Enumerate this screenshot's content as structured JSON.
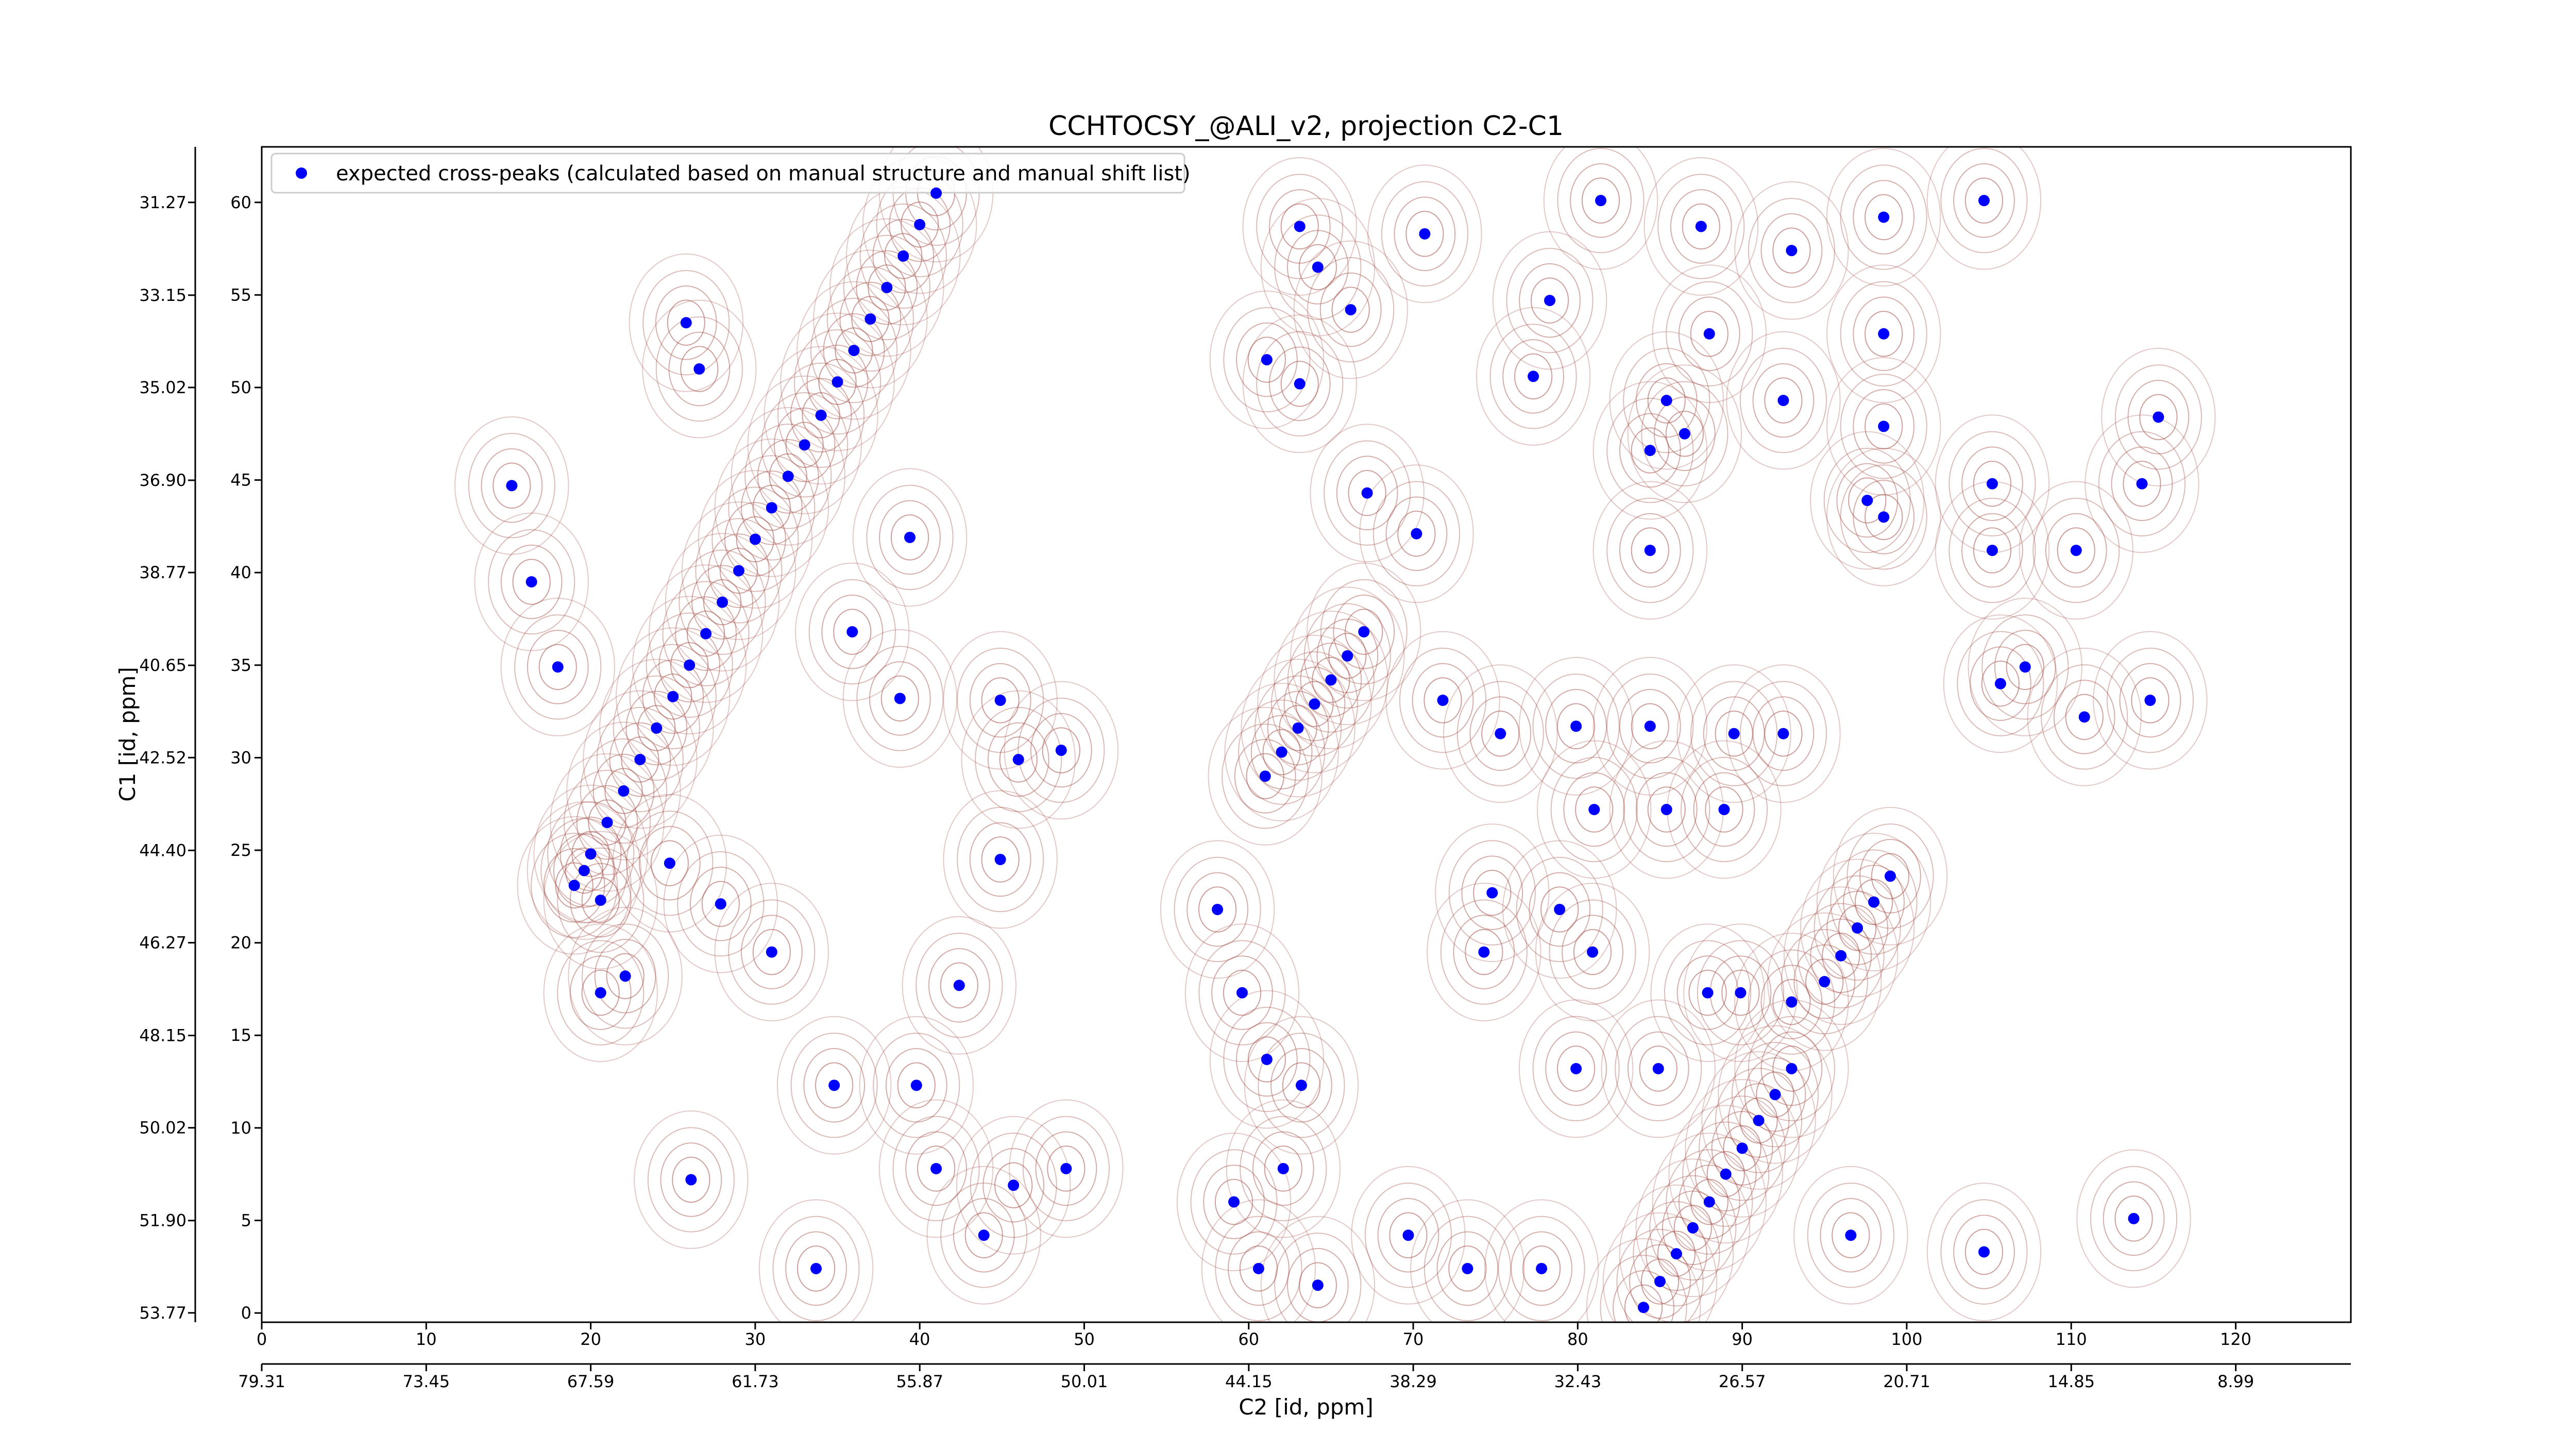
{
  "chart_data": {
    "type": "scatter",
    "title": "CCHTOCSY_@ALI_v2, projection C2-C1",
    "x_label": "C2 [id, ppm]",
    "y_label": "C1 [id, ppm]",
    "xlim": [
      0,
      127
    ],
    "xticks": [
      0,
      10,
      20,
      30,
      40,
      50,
      60,
      70,
      80,
      90,
      100,
      110,
      120
    ],
    "x2lim": [
      79.31,
      4.89
    ],
    "x2ticks": [
      79.31,
      73.45,
      67.59,
      61.73,
      55.87,
      50.01,
      44.15,
      38.29,
      32.43,
      26.57,
      20.71,
      14.85,
      8.99
    ],
    "ylim": [
      -0.5,
      63
    ],
    "yticks": [
      0,
      5,
      10,
      15,
      20,
      25,
      30,
      35,
      40,
      45,
      50,
      55,
      60
    ],
    "y2lim": [
      53.96,
      30.145
    ],
    "y2ticks": [
      53.77,
      {
        "value": 51.9,
        "label": "51.90"
      },
      50.02,
      48.15,
      46.27,
      {
        "value": 44.4,
        "label": "44.40"
      },
      42.52,
      40.65,
      38.77,
      {
        "value": 36.9,
        "label": "36.90"
      },
      35.02,
      33.15,
      31.27
    ],
    "legend": "upper left",
    "series": [
      {
        "name": "expected cross-peaks (calculated based on manual structure and manual shift list)",
        "color": "#0000ff",
        "x": [
          19,
          20,
          21,
          22,
          23,
          24,
          25,
          26,
          27,
          28,
          29,
          30,
          31,
          32,
          33,
          34,
          35,
          36,
          37,
          38,
          39,
          40,
          41,
          61,
          62,
          63,
          64,
          65,
          66,
          67,
          84,
          85,
          86,
          87,
          88,
          89,
          90,
          91,
          92,
          93,
          95,
          96,
          97,
          98,
          99,
          15.2,
          16.4,
          18.0,
          19.6,
          24.8,
          27.9,
          31.0,
          25.8,
          26.6,
          39.4,
          35.9,
          38.8,
          44.9,
          46.0,
          48.6,
          44.9,
          42.4,
          43.9,
          45.7,
          48.9,
          41.0,
          34.8,
          33.7,
          39.8,
          26.1,
          20.6,
          58.1,
          59.6,
          61.1,
          63.2,
          60.6,
          64.2,
          59.1,
          62.1,
          61.1,
          63.1,
          66.2,
          63.1,
          64.2,
          70.7,
          70.2,
          67.2,
          71.8,
          75.3,
          79.9,
          84.4,
          92.5,
          89.5,
          81.0,
          85.4,
          88.9,
          74.8,
          74.3,
          78.9,
          80.9,
          79.9,
          84.9,
          77.8,
          73.3,
          69.7,
          87.9,
          89.9,
          93.0,
          96.6,
          104.7,
          113.8,
          105.2,
          105.2,
          110.3,
          114.3,
          115.3,
          105.7,
          107.2,
          110.8,
          114.8,
          98.6,
          98.6,
          98.6,
          93.0,
          92.5,
          87.5,
          88.0,
          84.4,
          84.4,
          81.4,
          78.3,
          77.3,
          85.4,
          86.5,
          98.6,
          97.6,
          104.7,
          20.6,
          22.1
        ],
        "values": [
          23.1,
          24.8,
          26.5,
          28.2,
          29.9,
          31.6,
          33.3,
          35.0,
          36.7,
          38.4,
          40.1,
          41.8,
          43.5,
          45.2,
          46.9,
          48.5,
          50.3,
          52.0,
          53.7,
          55.4,
          57.1,
          58.8,
          60.5,
          29.0,
          30.3,
          31.6,
          32.9,
          34.2,
          35.5,
          36.8,
          0.3,
          1.7,
          3.2,
          4.6,
          6.0,
          7.5,
          8.9,
          10.4,
          11.8,
          13.2,
          17.9,
          19.3,
          20.8,
          22.2,
          23.6,
          44.7,
          39.5,
          34.9,
          23.9,
          24.3,
          22.1,
          19.5,
          53.5,
          51.0,
          41.9,
          36.8,
          33.2,
          33.1,
          29.9,
          30.4,
          24.5,
          17.7,
          4.2,
          6.9,
          7.8,
          7.8,
          12.3,
          2.4,
          12.3,
          7.2,
          22.3,
          21.8,
          17.3,
          13.7,
          12.3,
          2.4,
          1.5,
          6.0,
          7.8,
          51.5,
          50.2,
          54.2,
          58.7,
          56.5,
          58.3,
          42.1,
          44.3,
          33.1,
          31.3,
          31.7,
          31.7,
          31.3,
          31.3,
          27.2,
          27.2,
          27.2,
          22.7,
          19.5,
          21.8,
          19.5,
          13.2,
          13.2,
          2.4,
          2.4,
          4.2,
          17.3,
          17.3,
          16.8,
          4.2,
          3.3,
          5.1,
          44.8,
          41.2,
          41.2,
          44.8,
          48.4,
          34.0,
          34.9,
          32.2,
          33.1,
          59.2,
          52.9,
          47.9,
          57.4,
          49.3,
          58.7,
          52.9,
          46.6,
          41.2,
          60.1,
          54.7,
          50.6,
          49.3,
          47.5,
          43.0,
          43.9,
          60.1,
          17.3,
          18.2
        ]
      }
    ]
  }
}
